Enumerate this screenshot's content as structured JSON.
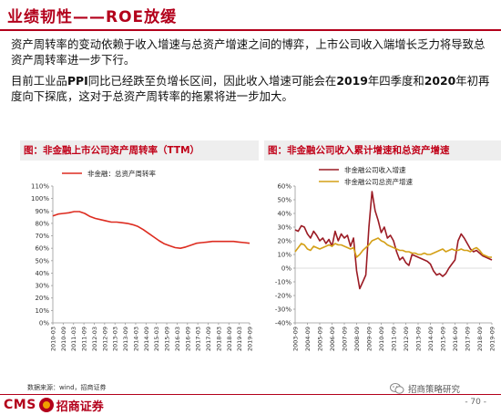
{
  "header": {
    "title": "业绩韧性——ROE放缓"
  },
  "body": {
    "p1": "资产周转率的变动依赖于收入增速与总资产增速之间的博弈，上市公司收入端增长乏力将导致总资产周转率进一步下行。",
    "p2_parts": [
      "目前工业品",
      "PPI",
      "同比已经跌至负增长区间，因此收入增速可能会在",
      "2019",
      "年四季度和",
      "2020",
      "年初再度向下探底，这对于总资产周转率的拖累将进一步加大。"
    ]
  },
  "chart1_title": "图：非金融上市公司资产周转率（TTM）",
  "chart2_title": "图：非金融公司收入累计增速和总资产增速",
  "chart_data": [
    {
      "type": "line",
      "title": "图：非金融上市公司资产周转率（TTM）",
      "xlabel": "",
      "ylabel": "",
      "ylim": [
        0,
        1.1
      ],
      "yticks": [
        "0%",
        "10%",
        "20%",
        "30%",
        "40%",
        "50%",
        "60%",
        "70%",
        "80%",
        "90%",
        "100%",
        "110%"
      ],
      "xticks": [
        "2010-03",
        "2010-09",
        "2011-03",
        "2011-09",
        "2012-03",
        "2012-09",
        "2013-03",
        "2013-09",
        "2014-03",
        "2014-09",
        "2015-03",
        "2015-09",
        "2016-03",
        "2016-09",
        "2017-03",
        "2017-09",
        "2018-03",
        "2018-09",
        "2019-03",
        "2019-09"
      ],
      "legend_position": "top-left",
      "series": [
        {
          "name": "非金融：总资产周转率",
          "color": "#dd2c20",
          "values": [
            0.86,
            0.875,
            0.88,
            0.885,
            0.895,
            0.895,
            0.88,
            0.855,
            0.84,
            0.83,
            0.82,
            0.81,
            0.81,
            0.805,
            0.8,
            0.79,
            0.775,
            0.75,
            0.72,
            0.69,
            0.66,
            0.635,
            0.62,
            0.605,
            0.6,
            0.61,
            0.625,
            0.64,
            0.645,
            0.65,
            0.655,
            0.655,
            0.655,
            0.655,
            0.655,
            0.65,
            0.645,
            0.64
          ]
        }
      ]
    },
    {
      "type": "line",
      "title": "图：非金融公司收入累计增速和总资产增速",
      "xlabel": "",
      "ylabel": "",
      "ylim": [
        -0.4,
        0.6
      ],
      "yticks": [
        "-40%",
        "-30%",
        "-20%",
        "-10%",
        "0%",
        "10%",
        "20%",
        "30%",
        "40%",
        "50%",
        "60%"
      ],
      "xticks": [
        "2003-09",
        "2004-09",
        "2005-09",
        "2006-09",
        "2007-09",
        "2008-09",
        "2009-09",
        "2010-09",
        "2011-09",
        "2012-09",
        "2013-09",
        "2014-09",
        "2015-09",
        "2016-09",
        "2017-09",
        "2018-09",
        "2019-09"
      ],
      "x_range": [
        2003.75,
        2019.75
      ],
      "legend_position": "top-center",
      "series": [
        {
          "name": "非金融公司收入增速",
          "color": "#9b1b24",
          "x": [
            2003.75,
            2004.0,
            2004.25,
            2004.5,
            2004.75,
            2005.0,
            2005.25,
            2005.5,
            2005.75,
            2006.0,
            2006.25,
            2006.5,
            2006.75,
            2007.0,
            2007.25,
            2007.5,
            2007.75,
            2008.0,
            2008.25,
            2008.5,
            2008.75,
            2009.0,
            2009.25,
            2009.5,
            2009.75,
            2010.0,
            2010.25,
            2010.5,
            2010.75,
            2011.0,
            2011.25,
            2011.5,
            2011.75,
            2012.0,
            2012.25,
            2012.5,
            2012.75,
            2013.0,
            2013.25,
            2013.5,
            2013.75,
            2014.0,
            2014.25,
            2014.5,
            2014.75,
            2015.0,
            2015.25,
            2015.5,
            2015.75,
            2016.0,
            2016.25,
            2016.5,
            2016.75,
            2017.0,
            2017.25,
            2017.5,
            2017.75,
            2018.0,
            2018.25,
            2018.5,
            2018.75,
            2019.0,
            2019.25,
            2019.5,
            2019.75
          ],
          "values": [
            0.28,
            0.27,
            0.31,
            0.3,
            0.25,
            0.22,
            0.27,
            0.24,
            0.2,
            0.22,
            0.18,
            0.21,
            0.16,
            0.27,
            0.2,
            0.25,
            0.22,
            0.24,
            0.16,
            0.22,
            -0.02,
            -0.15,
            -0.1,
            -0.05,
            0.3,
            0.56,
            0.42,
            0.35,
            0.26,
            0.3,
            0.22,
            0.24,
            0.2,
            0.12,
            0.06,
            0.08,
            0.04,
            0.02,
            0.1,
            0.09,
            0.08,
            0.07,
            0.06,
            0.05,
            0.03,
            -0.02,
            -0.05,
            -0.04,
            -0.06,
            -0.04,
            0.0,
            0.03,
            0.06,
            0.2,
            0.25,
            0.22,
            0.18,
            0.14,
            0.12,
            0.13,
            0.11,
            0.09,
            0.08,
            0.07,
            0.06
          ]
        },
        {
          "name": "非金融公司总资产增速",
          "color": "#d4a017",
          "x": [
            2003.75,
            2004.0,
            2004.25,
            2004.5,
            2004.75,
            2005.0,
            2005.25,
            2005.5,
            2005.75,
            2006.0,
            2006.25,
            2006.5,
            2006.75,
            2007.0,
            2007.25,
            2007.5,
            2007.75,
            2008.0,
            2008.25,
            2008.5,
            2008.75,
            2009.0,
            2009.25,
            2009.5,
            2009.75,
            2010.0,
            2010.25,
            2010.5,
            2010.75,
            2011.0,
            2011.25,
            2011.5,
            2011.75,
            2012.0,
            2012.25,
            2012.5,
            2012.75,
            2013.0,
            2013.25,
            2013.5,
            2013.75,
            2014.0,
            2014.25,
            2014.5,
            2014.75,
            2015.0,
            2015.25,
            2015.5,
            2015.75,
            2016.0,
            2016.25,
            2016.5,
            2016.75,
            2017.0,
            2017.25,
            2017.5,
            2017.75,
            2018.0,
            2018.25,
            2018.5,
            2018.75,
            2019.0,
            2019.25,
            2019.5,
            2019.75
          ],
          "values": [
            0.12,
            0.15,
            0.18,
            0.17,
            0.14,
            0.13,
            0.16,
            0.15,
            0.14,
            0.15,
            0.16,
            0.17,
            0.16,
            0.18,
            0.17,
            0.17,
            0.16,
            0.15,
            0.14,
            0.15,
            0.08,
            0.1,
            0.13,
            0.15,
            0.17,
            0.2,
            0.21,
            0.22,
            0.2,
            0.19,
            0.17,
            0.16,
            0.15,
            0.14,
            0.13,
            0.13,
            0.12,
            0.12,
            0.11,
            0.11,
            0.1,
            0.1,
            0.11,
            0.1,
            0.1,
            0.11,
            0.12,
            0.13,
            0.14,
            0.12,
            0.13,
            0.14,
            0.13,
            0.13,
            0.14,
            0.13,
            0.13,
            0.12,
            0.14,
            0.15,
            0.13,
            0.1,
            0.09,
            0.08,
            0.08
          ]
        }
      ]
    }
  ],
  "source": "数据来源：wind，招商证券",
  "footer": {
    "logo_en": "CMS",
    "logo_cn": "招商证券",
    "wechat": "招商策略研究",
    "page": "- 70 -"
  },
  "colors": {
    "accent": "#b3001b"
  },
  "icons": {
    "wechat": "wechat-icon",
    "logo": "cms-logo-icon"
  }
}
